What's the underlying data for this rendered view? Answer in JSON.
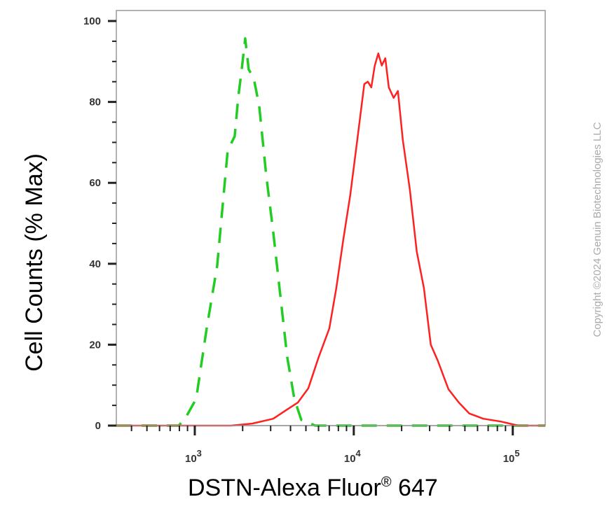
{
  "chart_data": {
    "type": "line",
    "title": "",
    "xlabel": "DSTN-Alexa Fluor",
    "xlabel_superscript": "®",
    "xlabel_suffix": " 647",
    "ylabel": "Cell Counts (% Max)",
    "xscale": "log",
    "xlim": [
      321,
      160000
    ],
    "ylim": [
      0,
      102.6
    ],
    "grid": false,
    "legend": "none",
    "x_tick_labels": [
      {
        "value": 1000,
        "base": "10",
        "exp": "3"
      },
      {
        "value": 10000,
        "base": "10",
        "exp": "4"
      },
      {
        "value": 100000,
        "base": "10",
        "exp": "5"
      }
    ],
    "y_ticks": [
      0,
      20,
      40,
      60,
      80,
      100
    ],
    "y_tick_labels": [
      "0",
      "20",
      "40",
      "60",
      "80",
      "100"
    ],
    "series": [
      {
        "color": "#22cc22",
        "style": "dashed",
        "x": [
          321,
          793,
          877,
          1020,
          1188,
          1383,
          1531,
          1611,
          1783,
          1876,
          1973,
          2076,
          2184,
          2345,
          2543,
          2812,
          3113,
          3444,
          3811,
          4227,
          4677,
          5728,
          160000
        ],
        "y": [
          0,
          0,
          2,
          6.6,
          24,
          39.5,
          58.5,
          68,
          71.5,
          81,
          88,
          95.7,
          88,
          86,
          79,
          62,
          48,
          32.5,
          17,
          6.6,
          1.4,
          0,
          0
        ]
      },
      {
        "color": "#ff2020",
        "style": "solid",
        "x": [
          321,
          1694,
          2296,
          3113,
          3811,
          4446,
          5176,
          6026,
          7015,
          7762,
          8590,
          9506,
          10520,
          11640,
          12250,
          12890,
          13560,
          14260,
          15000,
          15780,
          16600,
          17820,
          18950,
          20340,
          22500,
          24900,
          27600,
          30500,
          33800,
          39400,
          45800,
          53300,
          65300,
          84100,
          108400,
          160000
        ],
        "y": [
          0,
          0,
          0.5,
          1.7,
          4,
          5.7,
          9.2,
          17,
          24,
          34,
          46,
          57,
          70.6,
          84.4,
          85,
          83.6,
          89,
          92,
          89,
          90.8,
          83.6,
          81,
          82.7,
          70.6,
          58.5,
          43,
          34,
          20,
          16,
          9,
          5.7,
          3,
          1.7,
          1,
          0,
          0
        ]
      }
    ]
  },
  "copyright": "Copyright ©2024 Genuin Biotechnologies LLC"
}
